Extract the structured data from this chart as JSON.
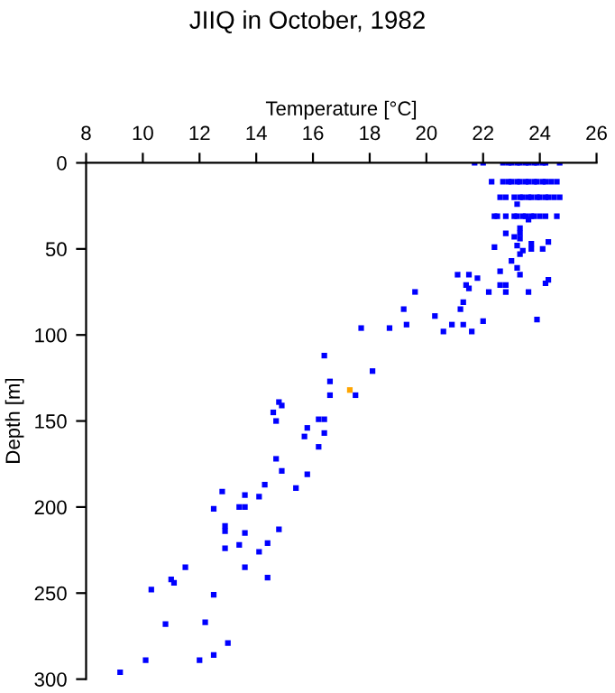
{
  "chart_data": {
    "type": "scatter",
    "title": "JIIQ in October, 1982",
    "xlabel": "Temperature [°C]",
    "ylabel": "Depth [m]",
    "xlim": [
      8,
      26
    ],
    "xticks": [
      8,
      10,
      12,
      14,
      16,
      18,
      20,
      22,
      24,
      26
    ],
    "ylim": [
      300,
      0
    ],
    "yticks": [
      0,
      50,
      100,
      150,
      200,
      250,
      300
    ],
    "marker": "square",
    "grid": false,
    "legend": false,
    "series": [
      {
        "color": "#0000ff",
        "x": [
          21.7,
          22.0,
          22.7,
          22.9,
          23.0,
          23.2,
          23.3,
          23.5,
          23.6,
          23.8,
          23.9,
          24.1,
          24.2,
          24.7,
          22.3,
          22.7,
          22.9,
          23.0,
          23.2,
          23.3,
          23.5,
          23.6,
          23.8,
          23.9,
          24.1,
          24.2,
          24.4,
          24.6,
          22.6,
          22.8,
          23.1,
          23.3,
          23.4,
          23.6,
          23.7,
          23.9,
          24.0,
          24.2,
          24.3,
          24.5,
          24.7,
          23.2,
          22.4,
          22.5,
          22.8,
          23.1,
          23.2,
          23.4,
          23.5,
          23.7,
          23.8,
          24.0,
          24.2,
          24.6,
          23.6,
          23.3,
          22.8,
          23.3,
          23.1,
          23.3,
          22.4,
          23.7,
          23.2,
          23.4,
          23.7,
          24.1,
          24.3,
          23.3,
          23.0,
          23.2,
          22.6,
          21.1,
          21.5,
          23.3,
          21.8,
          24.3,
          24.2,
          21.4,
          22.6,
          22.8,
          21.5,
          19.6,
          22.2,
          22.8,
          23.6,
          21.3,
          19.2,
          21.2,
          20.3,
          23.9,
          22.0,
          20.9,
          21.3,
          19.3,
          17.7,
          18.7,
          20.6,
          21.6,
          18.1,
          16.4,
          16.6,
          16.6,
          17.5,
          14.8,
          14.9,
          14.6,
          14.7,
          16.2,
          16.4,
          15.8,
          16.4,
          15.7,
          16.2,
          14.7,
          14.9,
          15.8,
          15.4,
          14.3,
          12.8,
          13.6,
          14.1,
          12.5,
          13.4,
          13.6,
          12.9,
          12.9,
          13.6,
          14.8,
          14.4,
          13.4,
          12.9,
          14.1,
          11.5,
          13.6,
          14.4,
          11.0,
          11.1,
          10.3,
          12.5,
          12.2,
          10.8,
          13.0,
          12.5,
          12.0,
          10.1,
          9.2
        ],
        "values": [
          0,
          0,
          0,
          0,
          0,
          0,
          0,
          0,
          0,
          0,
          0,
          0,
          0,
          0,
          11,
          11,
          11,
          11,
          11,
          11,
          11,
          11,
          11,
          11,
          11,
          11,
          11,
          11,
          20,
          20,
          20,
          20,
          20,
          20,
          20,
          20,
          20,
          20,
          20,
          20,
          20,
          24,
          31,
          31,
          31,
          31,
          31,
          31,
          31,
          31,
          31,
          31,
          31,
          31,
          33,
          38,
          41,
          41,
          43,
          44,
          49,
          47,
          48,
          51,
          50,
          50,
          46,
          53,
          57,
          61,
          63,
          65,
          65,
          65,
          67,
          68,
          70,
          71,
          71,
          71,
          73,
          75,
          75,
          75,
          75,
          81,
          85,
          85,
          89,
          91,
          92,
          94,
          94,
          94,
          96,
          96,
          98,
          98,
          121,
          112,
          127,
          135,
          135,
          139,
          141,
          145,
          150,
          149,
          149,
          154,
          157,
          159,
          165,
          172,
          179,
          181,
          189,
          187,
          191,
          193,
          194,
          201,
          200,
          200,
          211,
          214,
          215,
          213,
          221,
          222,
          224,
          226,
          235,
          235,
          241,
          242,
          244,
          248,
          251,
          267,
          268,
          279,
          286,
          289,
          289,
          296
        ]
      },
      {
        "color": "#ffa500",
        "x": [
          17.3
        ],
        "values": [
          132
        ]
      }
    ]
  }
}
